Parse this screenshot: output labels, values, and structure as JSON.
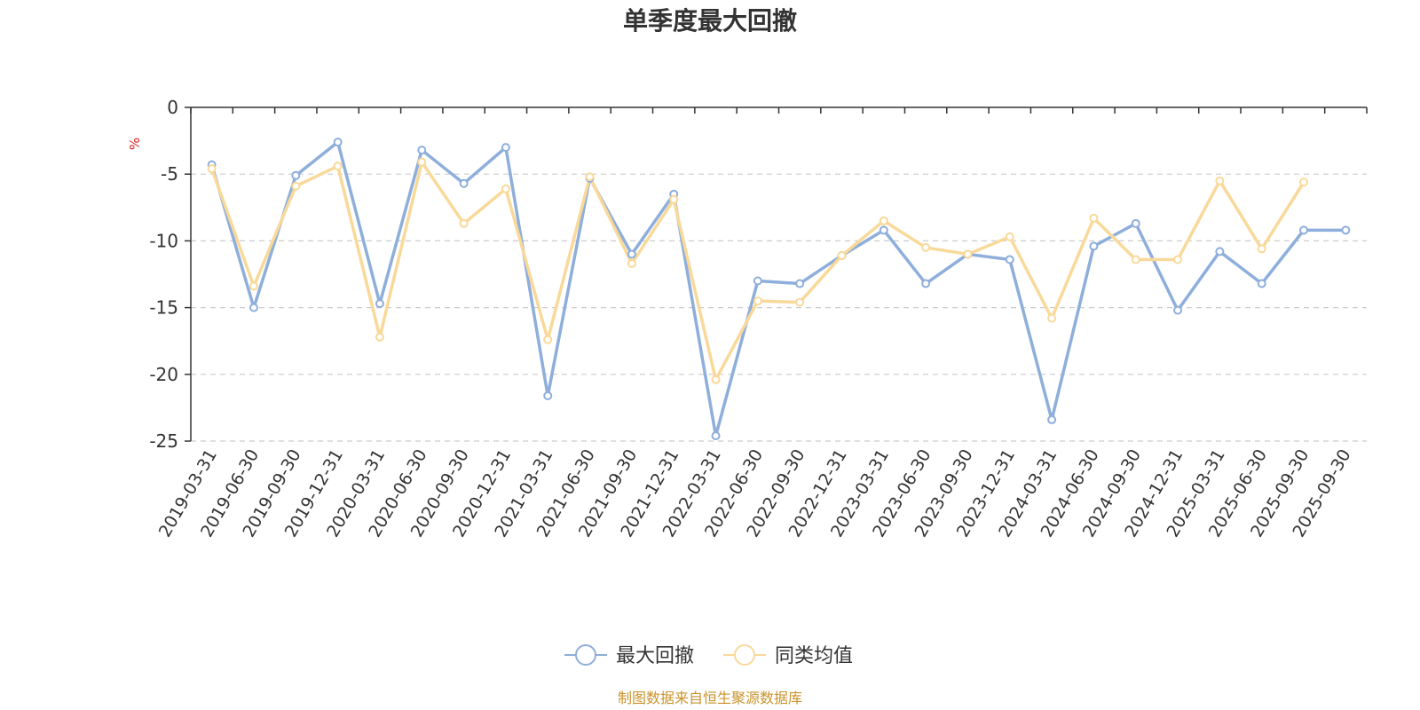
{
  "chart_data": {
    "type": "line",
    "title": "单季度最大回撤",
    "ylabel": "%",
    "ylim": [
      -25,
      0
    ],
    "yticks": [
      0,
      -5,
      -10,
      -15,
      -20,
      -25
    ],
    "grid": true,
    "legend_position": "bottom-center",
    "categories": [
      "2019-03-31",
      "2019-06-30",
      "2019-09-30",
      "2019-12-31",
      "2020-03-31",
      "2020-06-30",
      "2020-09-30",
      "2020-12-31",
      "2021-03-31",
      "2021-06-30",
      "2021-09-30",
      "2021-12-31",
      "2022-03-31",
      "2022-06-30",
      "2022-09-30",
      "2022-12-31",
      "2023-03-31",
      "2023-06-30",
      "2023-09-30",
      "2023-12-31",
      "2024-03-31",
      "2024-06-30",
      "2024-09-30",
      "2024-12-31",
      "2025-03-31",
      "2025-06-30",
      "2025-09-30",
      "2025-09-30"
    ],
    "series": [
      {
        "name": "最大回撤",
        "color": "#8eaedb",
        "values": [
          -4.3,
          -15.0,
          -5.1,
          -2.6,
          -14.7,
          -3.2,
          -5.7,
          -3.0,
          -21.6,
          -5.3,
          -11.0,
          -6.5,
          -24.6,
          -13.0,
          -13.2,
          -11.1,
          -9.2,
          -13.2,
          -11.0,
          -11.4,
          -23.4,
          -10.4,
          -8.7,
          -15.2,
          -10.8,
          -13.2,
          -9.2,
          -9.2
        ]
      },
      {
        "name": "同类均值",
        "color": "#f9d99a",
        "values": [
          -4.6,
          -13.4,
          -5.9,
          -4.4,
          -17.2,
          -4.1,
          -8.7,
          -6.1,
          -17.4,
          -5.2,
          -11.7,
          -6.9,
          -20.4,
          -14.5,
          -14.6,
          -11.1,
          -8.5,
          -10.5,
          -11.0,
          -9.7,
          -15.8,
          -8.3,
          -11.4,
          -11.4,
          -5.5,
          -10.6,
          -5.6,
          null
        ]
      }
    ]
  },
  "source": "制图数据来自恒生聚源数据库"
}
